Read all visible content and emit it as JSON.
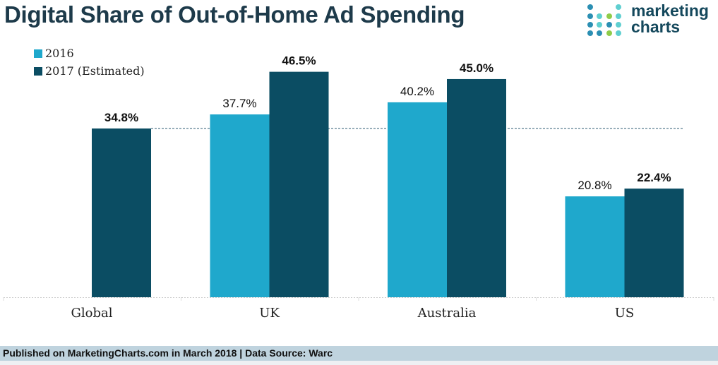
{
  "header": {
    "title": "Digital Share of Out-of-Home Ad Spending"
  },
  "logo": {
    "line1": "marketing",
    "line2": "charts"
  },
  "footer": {
    "text": "Published on MarketingCharts.com in March 2018 | Data Source: Warc"
  },
  "colors": {
    "s2016": "#1fa8cc",
    "s2017": "#0b4d63",
    "reference": "#2d5b73"
  },
  "chart_data": {
    "type": "bar",
    "title": "Digital Share of Out-of-Home Ad Spending",
    "xlabel": "",
    "ylabel": "",
    "ylim": [
      0,
      50
    ],
    "grid": false,
    "legend_position": "top-left",
    "categories": [
      "Global",
      "UK",
      "Australia",
      "US"
    ],
    "series": [
      {
        "name": "2016",
        "values": [
          null,
          37.7,
          40.2,
          20.8
        ],
        "labels": [
          "",
          "37.7%",
          "40.2%",
          "20.8%"
        ]
      },
      {
        "name": "2017 (Estimated)",
        "values": [
          34.8,
          46.5,
          45.0,
          22.4
        ],
        "labels": [
          "34.8%",
          "46.5%",
          "45.0%",
          "22.4%"
        ]
      }
    ],
    "reference_line": {
      "value": 34.8,
      "style": "dashed"
    }
  }
}
